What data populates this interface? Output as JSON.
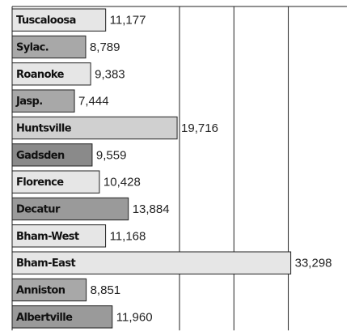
{
  "chart_data": {
    "type": "hbar",
    "categories": [
      "Tuscaloosa",
      "Sylac.",
      "Roanoke",
      "Jasp.",
      "Huntsville",
      "Gadsden",
      "Florence",
      "Decatur",
      "Bham-West",
      "Bham-East",
      "Anniston",
      "Albertville"
    ],
    "values": [
      11177,
      8789,
      9383,
      7444,
      19716,
      9559,
      10428,
      13884,
      11168,
      33298,
      8851,
      11960
    ],
    "value_labels": [
      "11,177",
      "8,789",
      "9,383",
      "7,444",
      "19,716",
      "9,559",
      "10,428",
      "13,884",
      "11,168",
      "33,298",
      "8,851",
      "11,960"
    ],
    "colors": [
      "#e6e6e6",
      "#a8a8a8",
      "#e6e6e6",
      "#a8a8a8",
      "#d0d0d0",
      "#8a8a8a",
      "#e6e6e6",
      "#9a9a9a",
      "#e6e6e6",
      "#e6e6e6",
      "#a8a8a8",
      "#9a9a9a"
    ],
    "xlim": [
      0,
      40000
    ],
    "xticks": [
      20000,
      26500,
      33000
    ],
    "grid": true
  }
}
